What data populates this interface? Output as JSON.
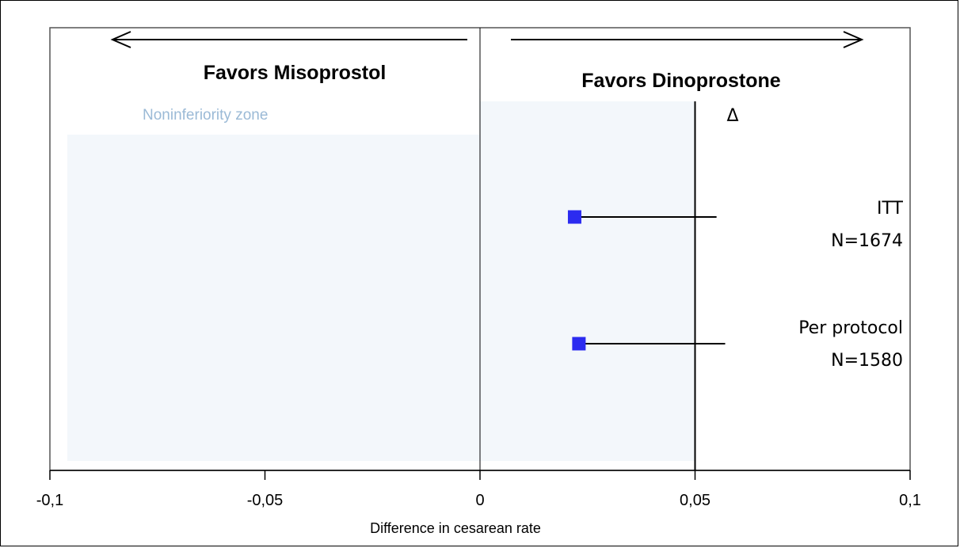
{
  "chart_data": {
    "type": "scatter",
    "subtype": "forest-plot",
    "xlabel": "Difference in cesarean rate",
    "xlim": [
      -0.1,
      0.1
    ],
    "xticks": [
      -0.1,
      -0.05,
      0,
      0.05,
      0.1
    ],
    "xtick_labels": [
      "-0,1",
      "-0,05",
      "0",
      "0,05",
      "0,1"
    ],
    "margin": {
      "value": 0.05,
      "label": "Δ"
    },
    "annotations": {
      "favors_left": "Favors Misoprostol",
      "favors_right": "Favors Dinoprostone",
      "zone": "Noninferiority zone"
    },
    "estimates": [
      {
        "label": "ITT",
        "n_label": "N=1674",
        "point": 0.022,
        "upper": 0.055
      },
      {
        "label": "Per protocol",
        "n_label": "N=1580",
        "point": 0.023,
        "upper": 0.057
      }
    ],
    "colors": {
      "marker": "#2b2bf0",
      "zone": "#f3f7fb",
      "zone_text": "#9bbad6"
    }
  }
}
